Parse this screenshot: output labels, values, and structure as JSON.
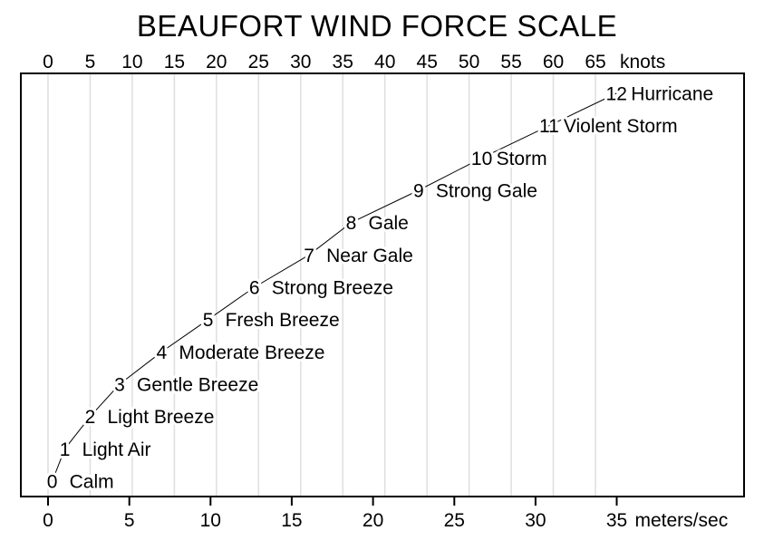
{
  "page": {
    "background": "#ffffff"
  },
  "chart_data": {
    "type": "line",
    "title": "BEAUFORT WIND FORCE SCALE",
    "top_axis": {
      "label": "knots",
      "ticks": [
        0,
        5,
        10,
        15,
        20,
        25,
        30,
        35,
        40,
        45,
        50,
        55,
        60,
        65
      ]
    },
    "bottom_axis": {
      "label": "meters/sec",
      "ticks": [
        0,
        5,
        10,
        15,
        20,
        25,
        30,
        35
      ]
    },
    "xlim_knots": [
      -3.2,
      82.6
    ],
    "ylim_beaufort": [
      -0.5,
      12.6
    ],
    "grid": {
      "vertical_at_top_axis_ticks": true,
      "horizontal": false,
      "color": "#dedede"
    },
    "line_color": "#000000",
    "text_color": "#000000",
    "border_color": "#000000",
    "points": [
      {
        "beaufort": 0,
        "name": "Calm",
        "knots": 0.5
      },
      {
        "beaufort": 1,
        "name": "Light Air",
        "knots": 2
      },
      {
        "beaufort": 2,
        "name": "Light Breeze",
        "knots": 5
      },
      {
        "beaufort": 3,
        "name": "Gentle Breeze",
        "knots": 8.5
      },
      {
        "beaufort": 4,
        "name": "Moderate Breeze",
        "knots": 13.5
      },
      {
        "beaufort": 5,
        "name": "Fresh Breeze",
        "knots": 19
      },
      {
        "beaufort": 6,
        "name": "Strong Breeze",
        "knots": 24.5
      },
      {
        "beaufort": 7,
        "name": "Near Gale",
        "knots": 31
      },
      {
        "beaufort": 8,
        "name": "Gale",
        "knots": 36
      },
      {
        "beaufort": 9,
        "name": "Strong Gale",
        "knots": 44
      },
      {
        "beaufort": 10,
        "name": "Storm",
        "knots": 51.5
      },
      {
        "beaufort": 11,
        "name": "Violent Storm",
        "knots": 59.5
      },
      {
        "beaufort": 12,
        "name": "Hurricane",
        "knots": 67.5
      }
    ]
  }
}
